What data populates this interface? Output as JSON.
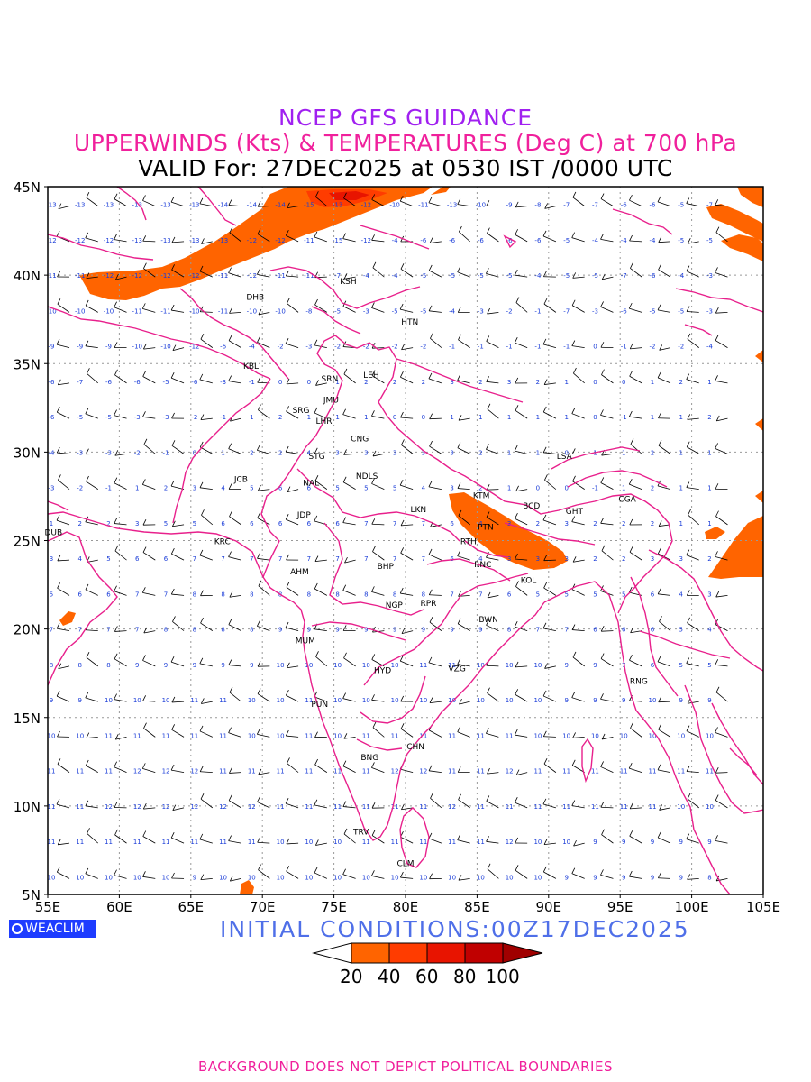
{
  "header": {
    "title": "NCEP GFS GUIDANCE",
    "subtitle": "UPPERWINDS (Kts) & TEMPERATURES (Deg C) at 700 hPa",
    "valid": "VALID For: 27DEC2025 at 0530 IST /0000 UTC"
  },
  "footer": {
    "initial_conditions": "INITIAL CONDITIONS:00Z17DEC2025",
    "disclaimer": "BACKGROUND DOES NOT DEPICT POLITICAL BOUNDARIES",
    "logo": "WEACLIM"
  },
  "map": {
    "lon_range": [
      55,
      105
    ],
    "lat_range": [
      5,
      45
    ],
    "lon_ticks": [
      "55E",
      "60E",
      "65E",
      "70E",
      "75E",
      "80E",
      "85E",
      "90E",
      "95E",
      "100E",
      "105E"
    ],
    "lat_ticks": [
      "5N",
      "10N",
      "15N",
      "20N",
      "25N",
      "30N",
      "35N",
      "40N",
      "45N"
    ],
    "grid": true,
    "colors": {
      "boundary": "#e8208c",
      "temp_label": "#1a3cd8",
      "barb": "#000000"
    },
    "stations": [
      {
        "code": "KSH",
        "lon": 76.0,
        "lat": 39.5
      },
      {
        "code": "DHB",
        "lon": 69.5,
        "lat": 38.6
      },
      {
        "code": "HTN",
        "lon": 80.3,
        "lat": 37.2
      },
      {
        "code": "KBL",
        "lon": 69.2,
        "lat": 34.7
      },
      {
        "code": "LEH",
        "lon": 77.6,
        "lat": 34.2
      },
      {
        "code": "SRN",
        "lon": 74.7,
        "lat": 34.0
      },
      {
        "code": "JMU",
        "lon": 74.8,
        "lat": 32.8
      },
      {
        "code": "SRG",
        "lon": 72.7,
        "lat": 32.2
      },
      {
        "code": "LHR",
        "lon": 74.3,
        "lat": 31.6
      },
      {
        "code": "CNG",
        "lon": 76.8,
        "lat": 30.6
      },
      {
        "code": "STG",
        "lon": 73.8,
        "lat": 29.6
      },
      {
        "code": "LSA",
        "lon": 91.1,
        "lat": 29.6
      },
      {
        "code": "JCB",
        "lon": 68.5,
        "lat": 28.3
      },
      {
        "code": "NAL",
        "lon": 73.4,
        "lat": 28.1
      },
      {
        "code": "NDLS",
        "lon": 77.3,
        "lat": 28.5
      },
      {
        "code": "KTM",
        "lon": 85.3,
        "lat": 27.4
      },
      {
        "code": "BCD",
        "lon": 88.8,
        "lat": 26.8
      },
      {
        "code": "CGA",
        "lon": 95.5,
        "lat": 27.2
      },
      {
        "code": "GHT",
        "lon": 91.8,
        "lat": 26.5
      },
      {
        "code": "JDP",
        "lon": 72.9,
        "lat": 26.3
      },
      {
        "code": "LKN",
        "lon": 80.9,
        "lat": 26.6
      },
      {
        "code": "DUB",
        "lon": 55.4,
        "lat": 25.3
      },
      {
        "code": "PTN",
        "lon": 85.6,
        "lat": 25.6
      },
      {
        "code": "KRC",
        "lon": 67.2,
        "lat": 24.8
      },
      {
        "code": "RTH",
        "lon": 84.4,
        "lat": 24.8
      },
      {
        "code": "BHP",
        "lon": 78.6,
        "lat": 23.4
      },
      {
        "code": "RNC",
        "lon": 85.4,
        "lat": 23.5
      },
      {
        "code": "AHM",
        "lon": 72.6,
        "lat": 23.1
      },
      {
        "code": "KOL",
        "lon": 88.6,
        "lat": 22.6
      },
      {
        "code": "NGP",
        "lon": 79.2,
        "lat": 21.2
      },
      {
        "code": "RPR",
        "lon": 81.6,
        "lat": 21.3
      },
      {
        "code": "BWN",
        "lon": 85.8,
        "lat": 20.4
      },
      {
        "code": "MUM",
        "lon": 73.0,
        "lat": 19.2
      },
      {
        "code": "HYD",
        "lon": 78.4,
        "lat": 17.5
      },
      {
        "code": "VZG",
        "lon": 83.6,
        "lat": 17.6
      },
      {
        "code": "RNG",
        "lon": 96.3,
        "lat": 16.9
      },
      {
        "code": "PUN",
        "lon": 74.0,
        "lat": 15.6
      },
      {
        "code": "CHN",
        "lon": 80.7,
        "lat": 13.2
      },
      {
        "code": "BNG",
        "lon": 77.5,
        "lat": 12.6
      },
      {
        "code": "TRV",
        "lon": 76.9,
        "lat": 8.4
      },
      {
        "code": "CLM",
        "lon": 80.0,
        "lat": 6.6
      }
    ],
    "temperature_rows": [
      {
        "lat": 44,
        "values": [
          -13,
          -13,
          -13,
          -13,
          -13,
          -13,
          -14,
          -14,
          -14,
          -15,
          -13,
          -12,
          -10,
          -11,
          -13,
          -10,
          -9,
          -8,
          -7,
          -7,
          -6,
          -6,
          -5,
          -7
        ]
      },
      {
        "lat": 42,
        "values": [
          -12,
          -12,
          -12,
          -13,
          -13,
          -13,
          -13,
          -12,
          -12,
          -11,
          -15,
          -12,
          -4,
          -6,
          -6,
          -6,
          -6,
          -6,
          -5,
          -4,
          -4,
          -4,
          -5,
          -5
        ]
      },
      {
        "lat": 40,
        "values": [
          -11,
          -11,
          -12,
          -12,
          -12,
          -12,
          -11,
          -12,
          -11,
          -11,
          -7,
          -4,
          -4,
          -5,
          -5,
          -5,
          -5,
          -4,
          -5,
          -5,
          -7,
          -6,
          -4,
          -3
        ]
      },
      {
        "lat": 38,
        "values": [
          -10,
          -10,
          -10,
          -11,
          -11,
          -10,
          -11,
          -10,
          -10,
          -8,
          -5,
          -3,
          -5,
          -5,
          -4,
          -3,
          -2,
          -1,
          -7,
          -3,
          -6,
          -5,
          -5,
          -3
        ]
      },
      {
        "lat": 36,
        "values": [
          -9,
          -9,
          -9,
          -10,
          -10,
          -12,
          -6,
          -4,
          -2,
          -3,
          -2,
          -2,
          -2,
          -2,
          -1,
          -1,
          -1,
          -1,
          -1,
          0,
          -1,
          -2,
          -2,
          -4
        ]
      },
      {
        "lat": 34,
        "values": [
          -6,
          -7,
          -6,
          -6,
          -5,
          -6,
          -3,
          -1,
          0,
          0,
          1,
          2,
          2,
          2,
          3,
          2,
          3,
          2,
          1,
          0,
          0,
          1,
          2,
          1
        ]
      },
      {
        "lat": 32,
        "values": [
          -6,
          -5,
          -5,
          -3,
          -3,
          -2,
          -1,
          1,
          2,
          1,
          1,
          1,
          0,
          0,
          1,
          1,
          1,
          1,
          1,
          0,
          -1,
          1,
          1,
          2
        ]
      },
      {
        "lat": 30,
        "values": [
          -4,
          -3,
          -3,
          -2,
          -1,
          0,
          1,
          2,
          2,
          4,
          3,
          3,
          3,
          3,
          3,
          2,
          1,
          1,
          0,
          1,
          1,
          2,
          1,
          1
        ]
      },
      {
        "lat": 28,
        "values": [
          -3,
          -2,
          -1,
          1,
          2,
          3,
          4,
          5,
          6,
          6,
          5,
          5,
          5,
          4,
          3,
          2,
          1,
          0,
          0,
          -1,
          1,
          2,
          1,
          1
        ]
      },
      {
        "lat": 26,
        "values": [
          1,
          2,
          2,
          3,
          5,
          5,
          6,
          6,
          6,
          6,
          6,
          7,
          7,
          7,
          6,
          4,
          3,
          2,
          3,
          2,
          2,
          2,
          1,
          1
        ]
      },
      {
        "lat": 24,
        "values": [
          3,
          4,
          5,
          6,
          6,
          7,
          7,
          7,
          7,
          7,
          7,
          7,
          7,
          7,
          6,
          4,
          3,
          3,
          3,
          2,
          2,
          3,
          3,
          2
        ]
      },
      {
        "lat": 22,
        "values": [
          5,
          6,
          6,
          7,
          7,
          8,
          8,
          8,
          8,
          8,
          8,
          8,
          8,
          8,
          7,
          7,
          6,
          5,
          5,
          5,
          5,
          6,
          4,
          3
        ]
      },
      {
        "lat": 20,
        "values": [
          7,
          7,
          7,
          7,
          8,
          8,
          8,
          8,
          9,
          9,
          9,
          9,
          9,
          9,
          9,
          9,
          8,
          7,
          7,
          6,
          6,
          6,
          5,
          4
        ]
      },
      {
        "lat": 18,
        "values": [
          8,
          8,
          8,
          9,
          9,
          9,
          9,
          9,
          10,
          10,
          10,
          10,
          10,
          11,
          11,
          10,
          10,
          10,
          9,
          9,
          7,
          6,
          5,
          5
        ]
      },
      {
        "lat": 16,
        "values": [
          9,
          9,
          10,
          10,
          10,
          11,
          11,
          10,
          10,
          11,
          10,
          10,
          10,
          10,
          10,
          10,
          10,
          10,
          9,
          9,
          9,
          10,
          9,
          9
        ]
      },
      {
        "lat": 14,
        "values": [
          10,
          10,
          11,
          11,
          11,
          11,
          11,
          10,
          10,
          11,
          10,
          11,
          11,
          11,
          11,
          11,
          11,
          10,
          10,
          10,
          10,
          10,
          10,
          10
        ]
      },
      {
        "lat": 12,
        "values": [
          11,
          11,
          11,
          12,
          12,
          12,
          11,
          11,
          11,
          11,
          11,
          11,
          12,
          12,
          11,
          11,
          12,
          11,
          11,
          11,
          11,
          11,
          11,
          11
        ]
      },
      {
        "lat": 10,
        "values": [
          11,
          11,
          12,
          12,
          12,
          12,
          12,
          12,
          11,
          11,
          11,
          11,
          11,
          11,
          12,
          11,
          11,
          11,
          11,
          11,
          11,
          11,
          10,
          10
        ]
      },
      {
        "lat": 8,
        "values": [
          11,
          11,
          11,
          11,
          11,
          11,
          11,
          11,
          10,
          10,
          10,
          11,
          11,
          11,
          11,
          11,
          12,
          10,
          10,
          9,
          9,
          9,
          9,
          9
        ]
      },
      {
        "lat": 6,
        "values": [
          10,
          10,
          10,
          10,
          10,
          9,
          10,
          10,
          10,
          10,
          10,
          10,
          10,
          10,
          10,
          10,
          10,
          10,
          9,
          9,
          9,
          9,
          9,
          8
        ]
      }
    ],
    "colorbar": {
      "levels": [
        20,
        40,
        60,
        80,
        100
      ],
      "colors": [
        "#ffffff",
        "#ff6400",
        "#ff3c00",
        "#e81400",
        "#c00000",
        "#a00000"
      ]
    }
  }
}
